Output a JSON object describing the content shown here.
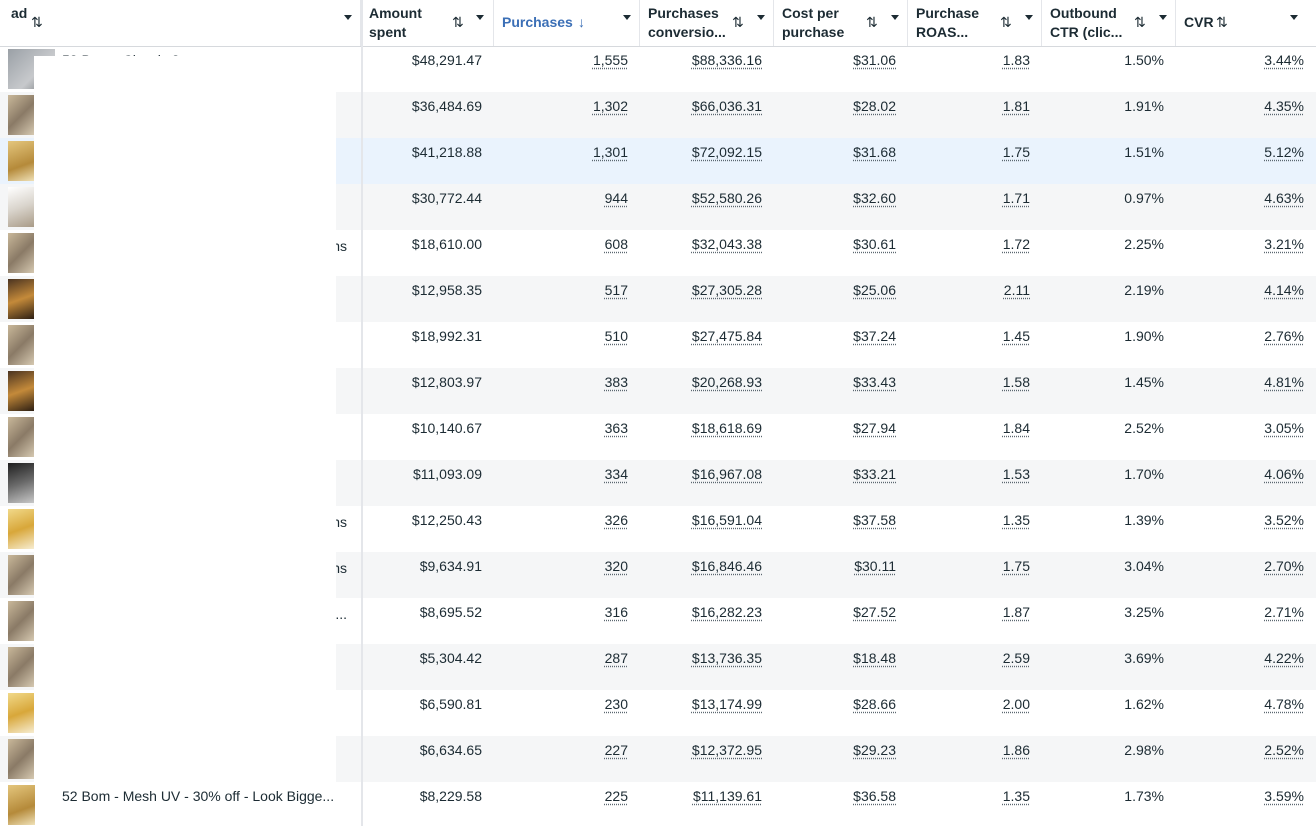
{
  "header": {
    "columns": [
      {
        "label": "ad",
        "sort_icon": "⇅",
        "active": false
      },
      {
        "label": "Amount spent",
        "sort_icon": "⇅",
        "active": false
      },
      {
        "label": "Purchases",
        "sort_icon": "↓",
        "active": true
      },
      {
        "label": "Purchases conversio...",
        "sort_icon": "⇅",
        "active": false
      },
      {
        "label": "Cost per purchase",
        "sort_icon": "⇅",
        "active": false
      },
      {
        "label": "Purchase ROAS...",
        "sort_icon": "⇅",
        "active": false
      },
      {
        "label": "Outbound CTR (clic...",
        "sort_icon": "⇅",
        "active": false
      },
      {
        "label": "CVR",
        "sort_icon": "⇅",
        "active": false
      }
    ]
  },
  "ads": {
    "first_name": "53 Bom - Classic 3",
    "last_name": "52 Bom - Mesh UV - 30% off - Look Bigge..."
  },
  "rows": [
    {
      "ad_tail": "",
      "amount_spent": "$48,291.47",
      "purchases": "1,555",
      "conversion_value": "$88,336.16",
      "cost_per_purchase": "$31.06",
      "roas": "1.83",
      "outbound_ctr": "1.50%",
      "cvr": "3.44%"
    },
    {
      "ad_tail": "",
      "amount_spent": "$36,484.69",
      "purchases": "1,302",
      "conversion_value": "$66,036.31",
      "cost_per_purchase": "$28.02",
      "roas": "1.81",
      "outbound_ctr": "1.91%",
      "cvr": "4.35%"
    },
    {
      "ad_tail": "",
      "amount_spent": "$41,218.88",
      "purchases": "1,301",
      "conversion_value": "$72,092.15",
      "cost_per_purchase": "$31.68",
      "roas": "1.75",
      "outbound_ctr": "1.51%",
      "cvr": "5.12%"
    },
    {
      "ad_tail": "",
      "amount_spent": "$30,772.44",
      "purchases": "944",
      "conversion_value": "$52,580.26",
      "cost_per_purchase": "$32.60",
      "roas": "1.71",
      "outbound_ctr": "0.97%",
      "cvr": "4.63%"
    },
    {
      "ad_tail": "ns",
      "amount_spent": "$18,610.00",
      "purchases": "608",
      "conversion_value": "$32,043.38",
      "cost_per_purchase": "$30.61",
      "roas": "1.72",
      "outbound_ctr": "2.25%",
      "cvr": "3.21%"
    },
    {
      "ad_tail": "",
      "amount_spent": "$12,958.35",
      "purchases": "517",
      "conversion_value": "$27,305.28",
      "cost_per_purchase": "$25.06",
      "roas": "2.11",
      "outbound_ctr": "2.19%",
      "cvr": "4.14%"
    },
    {
      "ad_tail": "",
      "amount_spent": "$18,992.31",
      "purchases": "510",
      "conversion_value": "$27,475.84",
      "cost_per_purchase": "$37.24",
      "roas": "1.45",
      "outbound_ctr": "1.90%",
      "cvr": "2.76%"
    },
    {
      "ad_tail": "",
      "amount_spent": "$12,803.97",
      "purchases": "383",
      "conversion_value": "$20,268.93",
      "cost_per_purchase": "$33.43",
      "roas": "1.58",
      "outbound_ctr": "1.45%",
      "cvr": "4.81%"
    },
    {
      "ad_tail": "",
      "amount_spent": "$10,140.67",
      "purchases": "363",
      "conversion_value": "$18,618.69",
      "cost_per_purchase": "$27.94",
      "roas": "1.84",
      "outbound_ctr": "2.52%",
      "cvr": "3.05%"
    },
    {
      "ad_tail": "",
      "amount_spent": "$11,093.09",
      "purchases": "334",
      "conversion_value": "$16,967.08",
      "cost_per_purchase": "$33.21",
      "roas": "1.53",
      "outbound_ctr": "1.70%",
      "cvr": "4.06%"
    },
    {
      "ad_tail": "ns",
      "amount_spent": "$12,250.43",
      "purchases": "326",
      "conversion_value": "$16,591.04",
      "cost_per_purchase": "$37.58",
      "roas": "1.35",
      "outbound_ctr": "1.39%",
      "cvr": "3.52%"
    },
    {
      "ad_tail": "ns",
      "amount_spent": "$9,634.91",
      "purchases": "320",
      "conversion_value": "$16,846.46",
      "cost_per_purchase": "$30.11",
      "roas": "1.75",
      "outbound_ctr": "3.04%",
      "cvr": "2.70%"
    },
    {
      "ad_tail": "r...",
      "amount_spent": "$8,695.52",
      "purchases": "316",
      "conversion_value": "$16,282.23",
      "cost_per_purchase": "$27.52",
      "roas": "1.87",
      "outbound_ctr": "3.25%",
      "cvr": "2.71%"
    },
    {
      "ad_tail": "",
      "amount_spent": "$5,304.42",
      "purchases": "287",
      "conversion_value": "$13,736.35",
      "cost_per_purchase": "$18.48",
      "roas": "2.59",
      "outbound_ctr": "3.69%",
      "cvr": "4.22%"
    },
    {
      "ad_tail": "",
      "amount_spent": "$6,590.81",
      "purchases": "230",
      "conversion_value": "$13,174.99",
      "cost_per_purchase": "$28.66",
      "roas": "2.00",
      "outbound_ctr": "1.62%",
      "cvr": "4.78%"
    },
    {
      "ad_tail": "",
      "amount_spent": "$6,634.65",
      "purchases": "227",
      "conversion_value": "$12,372.95",
      "cost_per_purchase": "$29.23",
      "roas": "1.86",
      "outbound_ctr": "2.98%",
      "cvr": "2.52%"
    },
    {
      "ad_tail": "",
      "amount_spent": "$8,229.58",
      "purchases": "225",
      "conversion_value": "$11,139.61",
      "cost_per_purchase": "$36.58",
      "roas": "1.35",
      "outbound_ctr": "1.73%",
      "cvr": "3.59%"
    }
  ],
  "colors": {
    "accent": "#3b6fb6",
    "row_alt": "#f5f6f7",
    "row_highlight": "#eaf3fd",
    "border": "#e4e6ea"
  }
}
